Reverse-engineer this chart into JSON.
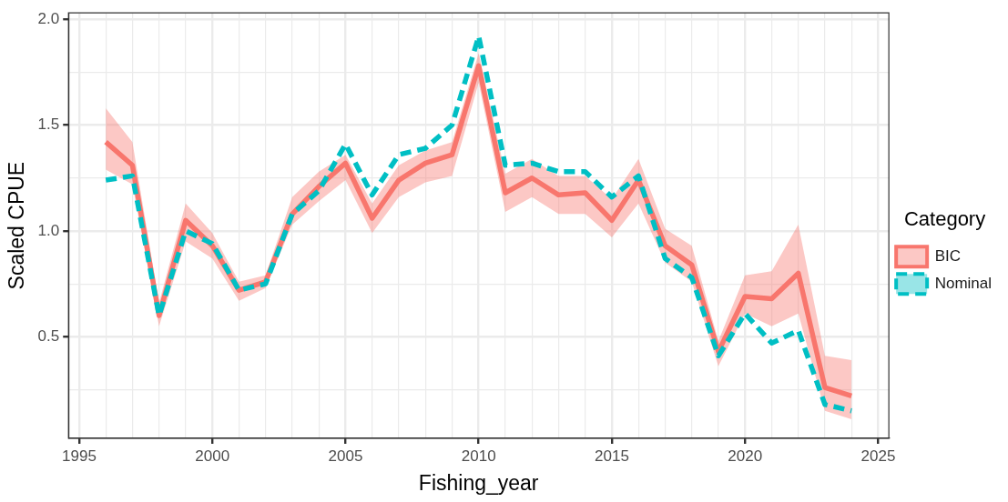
{
  "chart_data": {
    "type": "line",
    "xlabel": "Fishing_year",
    "ylabel": "Scaled CPUE",
    "legend_title": "Category",
    "legend": "right",
    "grid": true,
    "x": [
      1996,
      1997,
      1998,
      1999,
      2000,
      2001,
      2002,
      2003,
      2004,
      2005,
      2006,
      2007,
      2008,
      2009,
      2010,
      2011,
      2012,
      2013,
      2014,
      2015,
      2016,
      2017,
      2018,
      2019,
      2020,
      2021,
      2022,
      2023,
      2024
    ],
    "xlim": [
      1994.6,
      2025.4
    ],
    "xticks": [
      {
        "value": 1995,
        "label": "1995"
      },
      {
        "value": 1996,
        "label": null
      },
      {
        "value": 1997,
        "label": null
      },
      {
        "value": 1998,
        "label": null
      },
      {
        "value": 1999,
        "label": null
      },
      {
        "value": 2000,
        "label": "2000"
      },
      {
        "value": 2001,
        "label": null
      },
      {
        "value": 2002,
        "label": null
      },
      {
        "value": 2003,
        "label": null
      },
      {
        "value": 2004,
        "label": null
      },
      {
        "value": 2005,
        "label": "2005"
      },
      {
        "value": 2006,
        "label": null
      },
      {
        "value": 2007,
        "label": null
      },
      {
        "value": 2008,
        "label": null
      },
      {
        "value": 2009,
        "label": null
      },
      {
        "value": 2010,
        "label": "2010"
      },
      {
        "value": 2011,
        "label": null
      },
      {
        "value": 2012,
        "label": null
      },
      {
        "value": 2013,
        "label": null
      },
      {
        "value": 2014,
        "label": null
      },
      {
        "value": 2015,
        "label": "2015"
      },
      {
        "value": 2016,
        "label": null
      },
      {
        "value": 2017,
        "label": null
      },
      {
        "value": 2018,
        "label": null
      },
      {
        "value": 2019,
        "label": null
      },
      {
        "value": 2020,
        "label": "2020"
      },
      {
        "value": 2021,
        "label": null
      },
      {
        "value": 2022,
        "label": null
      },
      {
        "value": 2023,
        "label": null
      },
      {
        "value": 2024,
        "label": null
      },
      {
        "value": 2025,
        "label": "2025"
      }
    ],
    "ylim": [
      0.02,
      2.03
    ],
    "yticks": [
      {
        "value": 0.25,
        "label": null
      },
      {
        "value": 0.5,
        "label": "0.5"
      },
      {
        "value": 0.75,
        "label": null
      },
      {
        "value": 1,
        "label": "1.0"
      },
      {
        "value": 1.25,
        "label": null
      },
      {
        "value": 1.5,
        "label": "1.5"
      },
      {
        "value": 1.75,
        "label": null
      },
      {
        "value": 2,
        "label": "2.0"
      }
    ],
    "series": [
      {
        "name": "BIC",
        "color": "#f8766d",
        "line_style": "solid",
        "values": [
          1.42,
          1.31,
          0.6,
          1.05,
          0.93,
          0.72,
          0.76,
          1.08,
          1.21,
          1.32,
          1.06,
          1.24,
          1.32,
          1.36,
          1.78,
          1.18,
          1.25,
          1.17,
          1.18,
          1.05,
          1.24,
          0.93,
          0.84,
          0.43,
          0.69,
          0.68,
          0.8,
          0.26,
          0.22
        ],
        "lower": [
          1.29,
          1.22,
          0.55,
          0.95,
          0.87,
          0.67,
          0.73,
          1.03,
          1.14,
          1.24,
          0.99,
          1.16,
          1.23,
          1.26,
          1.7,
          1.09,
          1.16,
          1.08,
          1.08,
          0.97,
          1.13,
          0.85,
          0.76,
          0.36,
          0.61,
          0.55,
          0.61,
          0.15,
          0.11
        ],
        "upper": [
          1.58,
          1.42,
          0.66,
          1.13,
          0.99,
          0.76,
          0.79,
          1.16,
          1.28,
          1.36,
          1.13,
          1.31,
          1.38,
          1.42,
          1.84,
          1.27,
          1.34,
          1.26,
          1.26,
          1.15,
          1.34,
          1.01,
          0.93,
          0.48,
          0.79,
          0.81,
          1.03,
          0.41,
          0.39
        ]
      },
      {
        "name": "Nominal",
        "color": "#00bfc4",
        "line_style": "dashed",
        "values": [
          1.24,
          1.26,
          0.6,
          1.0,
          0.94,
          0.72,
          0.75,
          1.08,
          1.19,
          1.41,
          1.17,
          1.36,
          1.39,
          1.5,
          1.92,
          1.31,
          1.32,
          1.28,
          1.28,
          1.16,
          1.26,
          0.87,
          0.78,
          0.41,
          0.61,
          0.47,
          0.53,
          0.18,
          0.15
        ]
      }
    ]
  }
}
